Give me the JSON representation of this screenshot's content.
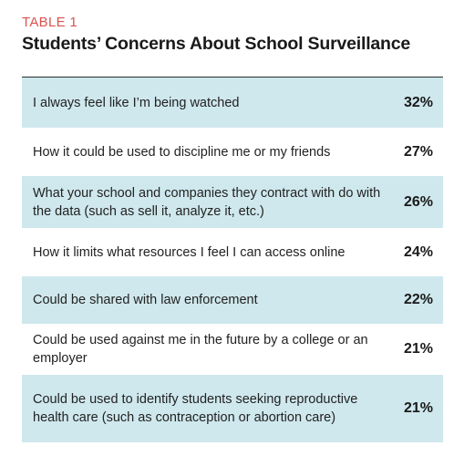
{
  "header": {
    "label": "TABLE 1",
    "title": "Students’ Concerns About School Surveillance"
  },
  "chart_data": {
    "type": "table",
    "title": "Students’ Concerns About School Surveillance",
    "rows": [
      {
        "text": "I always feel like I’m being watched",
        "value": "32%"
      },
      {
        "text": "How it could be used to discipline me or my friends",
        "value": "27%"
      },
      {
        "text": "What your school and companies they contract with do with the data (such as sell it, analyze it, etc.)",
        "value": "26%"
      },
      {
        "text": "How it limits what resources I feel I can access online",
        "value": "24%"
      },
      {
        "text": "Could be shared with law enforcement",
        "value": "22%"
      },
      {
        "text": "Could be used against me in the future by a college or an employer",
        "value": "21%"
      },
      {
        "text": "Could be used to identify students seeking reproductive health care (such as contraception or abortion care)",
        "value": "21%"
      }
    ]
  },
  "colors": {
    "label": "#d9534f",
    "shaded_row": "#cfe8ed",
    "text": "#222222"
  }
}
